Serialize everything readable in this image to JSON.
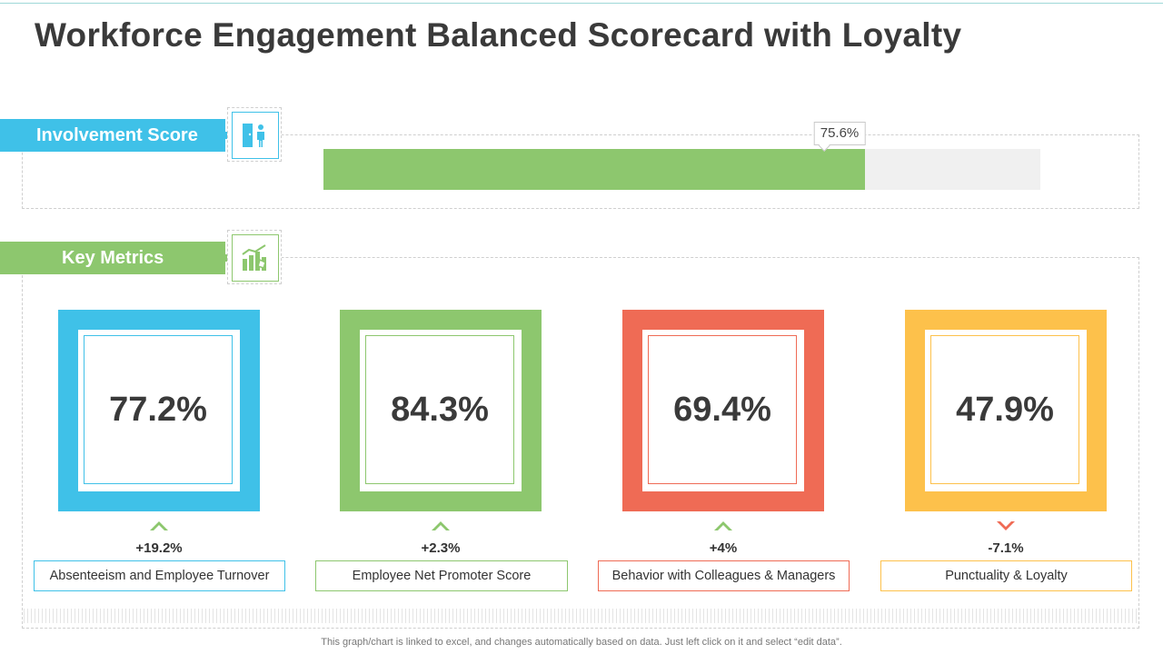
{
  "title": "Workforce Engagement Balanced Scorecard with Loyalty",
  "involvement": {
    "label": "Involvement Score",
    "value": 0.756,
    "value_label": "75.6%",
    "icon": "person-at-door-icon",
    "color": "#3fc1e8",
    "fill_color": "#8dc76e"
  },
  "key_metrics": {
    "label": "Key Metrics",
    "icon": "bar-chart-growth-icon",
    "color": "#8dc76e"
  },
  "metrics": [
    {
      "value": "77.2%",
      "change": "+19.2%",
      "direction": "up",
      "label": "Absenteeism and Employee Turnover",
      "color": "#3fc1e8"
    },
    {
      "value": "84.3%",
      "change": "+2.3%",
      "direction": "up",
      "label": "Employee Net Promoter Score",
      "color": "#8dc76e"
    },
    {
      "value": "69.4%",
      "change": "+4%",
      "direction": "up",
      "label": "Behavior with Colleagues & Managers",
      "color": "#ef6b55"
    },
    {
      "value": "47.9%",
      "change": "-7.1%",
      "direction": "down",
      "label": "Punctuality  & Loyalty",
      "color": "#fdc14b"
    }
  ],
  "colors": {
    "up_arrow": "#8dc76e",
    "down_arrow": "#ef6b55"
  },
  "footer": "This graph/chart is linked to excel,  and changes automatically based on data. Just left click on it and select “edit data”."
}
